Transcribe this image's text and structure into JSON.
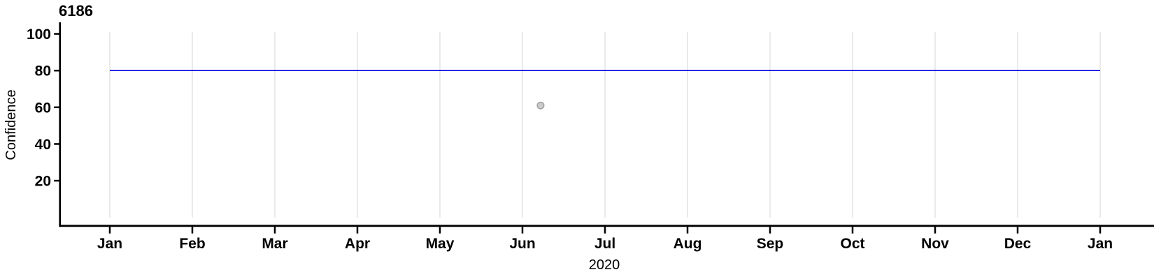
{
  "chart_data": {
    "type": "line",
    "title": "6186",
    "ylabel": "Confidence",
    "xlabel": "2020",
    "x_unit": "months from 2020-01-01",
    "x_tick_labels": [
      "Jan",
      "Feb",
      "Mar",
      "Apr",
      "May",
      "Jun",
      "Jul",
      "Aug",
      "Sep",
      "Oct",
      "Nov",
      "Dec",
      "Jan"
    ],
    "y_ticks": [
      20,
      40,
      60,
      80,
      100
    ],
    "xlim": [
      0,
      12
    ],
    "ylim": [
      -4.6,
      106.3
    ],
    "grid": "vertical",
    "legend": "none",
    "colors": {
      "background": "#ffffff",
      "grid": "#e2e2e2",
      "axis": "#000000",
      "line": "#0000dd",
      "point_fill": "#cbcbcb",
      "point_stroke": "#9e9e9e",
      "text": "#000000"
    },
    "series": [
      {
        "name": "confidence-level-line",
        "type": "line",
        "color": "#0000dd",
        "stroke_width": 1.6,
        "points": [
          {
            "x": 0,
            "y": 80
          },
          {
            "x": 12,
            "y": 80
          }
        ]
      },
      {
        "name": "observation-point",
        "type": "scatter",
        "fill": "#cbcbcb",
        "stroke": "#9e9e9e",
        "stroke_width": 1.4,
        "radius": 4.8,
        "points": [
          {
            "x": 5.22,
            "y": 61
          }
        ]
      }
    ]
  }
}
